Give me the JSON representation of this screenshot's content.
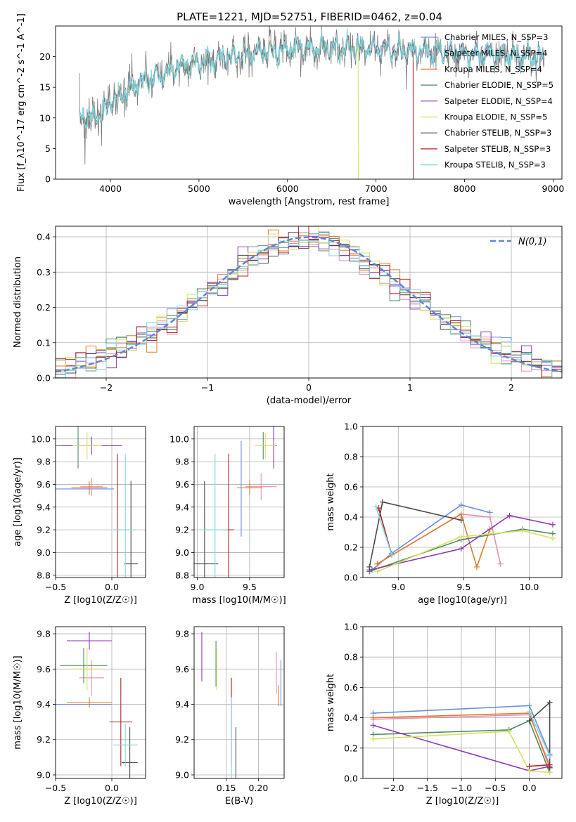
{
  "figure": {
    "title": "PLATE=1221, MJD=52751, FIBERID=0462, z=0.04"
  },
  "model_colors": [
    "#6c8fd6",
    "#e88fb3",
    "#e07b2f",
    "#4f8a64",
    "#8d3bb5",
    "#d4e25c",
    "#4a4a4a",
    "#b22222",
    "#7fd7df"
  ],
  "chart_data": [
    {
      "id": "spectrum",
      "type": "line",
      "xlabel": "wavelength [Angstrom, rest frame]",
      "ylabel": "Flux [f_λ10^-17 erg cm^-2 s^-1 A^-1]",
      "xlim": [
        3380,
        9100
      ],
      "ylim": [
        0,
        25
      ],
      "xticks": [
        4000,
        5000,
        6000,
        7000,
        8000,
        9000
      ],
      "yticks": [
        0,
        5,
        10,
        15,
        20
      ],
      "grid": false,
      "legend_position": "top-right",
      "data_x_range": [
        3650,
        8900
      ],
      "continuum": {
        "x": [
          3650,
          3900,
          4000,
          4300,
          4800,
          5500,
          6000,
          6500,
          7000,
          7500,
          8000,
          8500,
          8900
        ],
        "y": [
          10,
          10.5,
          12.5,
          15.5,
          18.5,
          20.3,
          21.3,
          21.5,
          21.2,
          20.8,
          20.5,
          20.2,
          19.8
        ]
      },
      "model_cutoffs": [
        null,
        8900,
        7420,
        8900,
        8900,
        6800,
        8900,
        7420,
        8900
      ],
      "series": [
        {
          "name": "Chabrier MILES, N_SSP=3"
        },
        {
          "name": "Salpeter MILES, N_SSP=4"
        },
        {
          "name": "Kroupa MILES, N_SSP=4"
        },
        {
          "name": "Chabrier ELODIE, N_SSP=5"
        },
        {
          "name": "Salpeter ELODIE, N_SSP=4"
        },
        {
          "name": "Kroupa ELODIE, N_SSP=5"
        },
        {
          "name": "Chabrier STELIB, N_SSP=3"
        },
        {
          "name": "Salpeter STELIB, N_SSP=3"
        },
        {
          "name": "Kroupa STELIB, N_SSP=3"
        }
      ]
    },
    {
      "id": "residuals",
      "type": "histogram",
      "xlabel": "(data-model)/error",
      "ylabel": "Normed distribution",
      "xlim": [
        -2.5,
        2.5
      ],
      "ylim": [
        0,
        0.43
      ],
      "xticks": [
        -2,
        -1,
        0,
        1,
        2
      ],
      "yticks": [
        0,
        0.1,
        0.2,
        0.3,
        0.4
      ],
      "grid": true,
      "legend_position": "top-right",
      "bin_edges_range": [
        -2.5,
        2.5
      ],
      "n_bins": 50,
      "reference_curve": {
        "name": "N(0,1)",
        "mean": 0,
        "sigma": 1
      }
    },
    {
      "id": "Z_age",
      "type": "errorbar",
      "xlabel": "Z [log10(Z/Z☉)]",
      "ylabel": "age [log10(age/yr)]",
      "xlim": [
        -0.5,
        0.3
      ],
      "ylim": [
        8.78,
        10.11
      ],
      "xticks": [
        -0.5,
        0.0
      ],
      "yticks": [
        8.8,
        9.0,
        9.2,
        9.4,
        9.6,
        9.8,
        10.0
      ],
      "grid": true,
      "points": [
        {
          "x": -0.25,
          "xerr": 0.27,
          "y": 9.56,
          "yerr": 0.0
        },
        {
          "x": -0.18,
          "xerr": 0.1,
          "y": 9.58,
          "yerr": 0.08
        },
        {
          "x": -0.2,
          "xerr": 0.16,
          "y": 9.57,
          "yerr": 0.06
        },
        {
          "x": -0.3,
          "xerr": 0.25,
          "y": 9.94,
          "yerr": 0.2
        },
        {
          "x": -0.18,
          "xerr": 0.27,
          "y": 9.94,
          "yerr": 0.08
        },
        {
          "x": -0.22,
          "xerr": 0.13,
          "y": 9.94,
          "yerr": 0.12
        },
        {
          "x": 0.17,
          "xerr": 0.06,
          "y": 8.9,
          "yerr": 0.73
        },
        {
          "x": 0.05,
          "xerr": 0.0,
          "y": 9.2,
          "yerr": 0.67
        },
        {
          "x": 0.12,
          "xerr": 0.1,
          "y": 9.2,
          "yerr": 0.67
        }
      ]
    },
    {
      "id": "mass_age",
      "type": "errorbar",
      "xlabel": "mass [log10(M/M☉)]",
      "ylabel": "",
      "xlim": [
        8.97,
        9.83
      ],
      "ylim": [
        8.78,
        10.11
      ],
      "xticks": [
        9.0,
        9.5
      ],
      "yticks": [
        8.8,
        9.0,
        9.2,
        9.4,
        9.6,
        9.8,
        10.0
      ],
      "grid": true,
      "points": [
        {
          "x": 9.42,
          "xerr": 0.0,
          "y": 9.56,
          "yerr": 0.42
        },
        {
          "x": 9.61,
          "xerr": 0.15,
          "y": 9.58,
          "yerr": 0.12
        },
        {
          "x": 9.5,
          "xerr": 0.12,
          "y": 9.57,
          "yerr": 0.06
        },
        {
          "x": 9.63,
          "xerr": 0.05,
          "y": 9.94,
          "yerr": 0.12
        },
        {
          "x": 9.73,
          "xerr": 0.03,
          "y": 9.94,
          "yerr": 0.2
        },
        {
          "x": 9.65,
          "xerr": 0.1,
          "y": 9.94,
          "yerr": 0.11
        },
        {
          "x": 9.07,
          "xerr": 0.13,
          "y": 8.9,
          "yerr": 0.73
        },
        {
          "x": 9.3,
          "xerr": 0.05,
          "y": 9.2,
          "yerr": 0.67
        },
        {
          "x": 9.17,
          "xerr": 0.12,
          "y": 9.2,
          "yerr": 0.67
        }
      ]
    },
    {
      "id": "age_weight",
      "type": "line",
      "xlabel": "age [log10(age/yr)]",
      "ylabel": "mass weight",
      "xlim": [
        8.73,
        10.25
      ],
      "ylim": [
        0,
        1
      ],
      "xticks": [
        9.0,
        9.5,
        10.0
      ],
      "yticks": [
        0,
        0.2,
        0.4,
        0.6,
        0.8,
        1.0
      ],
      "grid": true,
      "series": [
        {
          "x": [
            8.8,
            8.95,
            9.48,
            9.7
          ],
          "y": [
            0.05,
            0.16,
            0.48,
            0.43
          ]
        },
        {
          "x": [
            8.84,
            9.48,
            9.7,
            9.78
          ],
          "y": [
            0.09,
            0.42,
            0.4,
            0.09
          ]
        },
        {
          "x": [
            8.84,
            9.48,
            9.6,
            9.7
          ],
          "y": [
            0.09,
            0.42,
            0.07,
            0.32
          ]
        },
        {
          "x": [
            8.78,
            9.48,
            9.95,
            10.18
          ],
          "y": [
            0.04,
            0.25,
            0.32,
            0.29
          ]
        },
        {
          "x": [
            8.78,
            9.48,
            9.85,
            10.18
          ],
          "y": [
            0.05,
            0.19,
            0.41,
            0.35
          ]
        },
        {
          "x": [
            8.84,
            9.48,
            9.95,
            10.18
          ],
          "y": [
            0.04,
            0.27,
            0.31,
            0.26
          ]
        },
        {
          "x": [
            8.78,
            8.88,
            9.48
          ],
          "y": [
            0.07,
            0.5,
            0.38
          ]
        },
        {
          "x": [
            8.85,
            8.95
          ],
          "y": [
            0.46,
            0.15
          ]
        },
        {
          "x": [
            8.83,
            8.95
          ],
          "y": [
            0.47,
            0.15
          ]
        }
      ]
    },
    {
      "id": "Z_mass",
      "type": "errorbar",
      "xlabel": "Z [log10(Z/Z☉)]",
      "ylabel": "mass [log10(M/M☉)]",
      "xlim": [
        -0.5,
        0.3
      ],
      "ylim": [
        8.98,
        9.84
      ],
      "xticks": [
        -0.5,
        0.0
      ],
      "yticks": [
        9.0,
        9.2,
        9.4,
        9.6,
        9.8
      ],
      "grid": true,
      "points": [
        {
          "x": -0.25,
          "xerr": 0.25,
          "y": 9.4,
          "yerr": 0.0
        },
        {
          "x": -0.18,
          "xerr": 0.11,
          "y": 9.55,
          "yerr": 0.1
        },
        {
          "x": -0.2,
          "xerr": 0.2,
          "y": 9.41,
          "yerr": 0.03
        },
        {
          "x": -0.25,
          "xerr": 0.21,
          "y": 9.62,
          "yerr": 0.1
        },
        {
          "x": -0.2,
          "xerr": 0.2,
          "y": 9.76,
          "yerr": 0.05
        },
        {
          "x": -0.22,
          "xerr": 0.12,
          "y": 9.6,
          "yerr": 0.12
        },
        {
          "x": 0.16,
          "xerr": 0.07,
          "y": 9.07,
          "yerr": 0.2
        },
        {
          "x": 0.08,
          "xerr": 0.1,
          "y": 9.3,
          "yerr": 0.25
        },
        {
          "x": 0.12,
          "xerr": 0.11,
          "y": 9.17,
          "yerr": 0.12
        }
      ]
    },
    {
      "id": "ebv_mass",
      "type": "errorbar",
      "xlabel": "E(B-V)",
      "ylabel": "",
      "xlim": [
        0.1,
        0.24
      ],
      "ylim": [
        8.98,
        9.84
      ],
      "xticks": [
        0.15,
        0.2
      ],
      "yticks": [
        9.0,
        9.2,
        9.4,
        9.6,
        9.8
      ],
      "grid": true,
      "points": [
        {
          "x": 0.235,
          "xerr": 0.0,
          "y": 9.52,
          "yerr": 0.13
        },
        {
          "x": 0.228,
          "xerr": 0.0,
          "y": 9.58,
          "yerr": 0.12
        },
        {
          "x": 0.231,
          "xerr": 0.0,
          "y": 9.45,
          "yerr": 0.06
        },
        {
          "x": 0.134,
          "xerr": 0.0,
          "y": 9.63,
          "yerr": 0.13
        },
        {
          "x": 0.112,
          "xerr": 0.0,
          "y": 9.67,
          "yerr": 0.14
        },
        {
          "x": 0.135,
          "xerr": 0.0,
          "y": 9.6,
          "yerr": 0.12
        },
        {
          "x": 0.165,
          "xerr": 0.0,
          "y": 9.08,
          "yerr": 0.19
        },
        {
          "x": 0.158,
          "xerr": 0.0,
          "y": 9.3,
          "yerr": 0.25
        },
        {
          "x": 0.158,
          "xerr": 0.0,
          "y": 9.2,
          "yerr": 0.24
        }
      ]
    },
    {
      "id": "Z_weight",
      "type": "line",
      "xlabel": "Z [log10(Z/Z☉)]",
      "ylabel": "mass weight",
      "xlim": [
        -2.45,
        0.48
      ],
      "ylim": [
        0,
        1
      ],
      "xticks": [
        -2.0,
        -1.5,
        -1.0,
        -0.5,
        0.0
      ],
      "yticks": [
        0,
        0.2,
        0.4,
        0.6,
        0.8,
        1.0
      ],
      "grid": true,
      "series": [
        {
          "x": [
            -2.3,
            0.0,
            0.3
          ],
          "y": [
            0.43,
            0.48,
            0.16
          ]
        },
        {
          "x": [
            -2.3,
            0.0,
            0.3
          ],
          "y": [
            0.39,
            0.42,
            0.09
          ]
        },
        {
          "x": [
            -2.3,
            0.0,
            0.3
          ],
          "y": [
            0.4,
            0.43,
            0.07
          ]
        },
        {
          "x": [
            -2.3,
            -0.3,
            0.0,
            0.3
          ],
          "y": [
            0.29,
            0.32,
            0.38,
            0.04
          ]
        },
        {
          "x": [
            -2.3,
            0.0,
            0.3
          ],
          "y": [
            0.35,
            0.05,
            0.08
          ]
        },
        {
          "x": [
            -2.3,
            -0.3,
            0.0,
            0.3
          ],
          "y": [
            0.26,
            0.31,
            0.05,
            0.04
          ]
        },
        {
          "x": [
            0.0,
            0.3,
            0.3
          ],
          "y": [
            0.38,
            0.5,
            0.07
          ]
        },
        {
          "x": [
            0.0,
            0.3
          ],
          "y": [
            0.08,
            0.09
          ]
        },
        {
          "x": [
            0.0,
            0.3
          ],
          "y": [
            0.44,
            0.15
          ]
        }
      ]
    }
  ]
}
